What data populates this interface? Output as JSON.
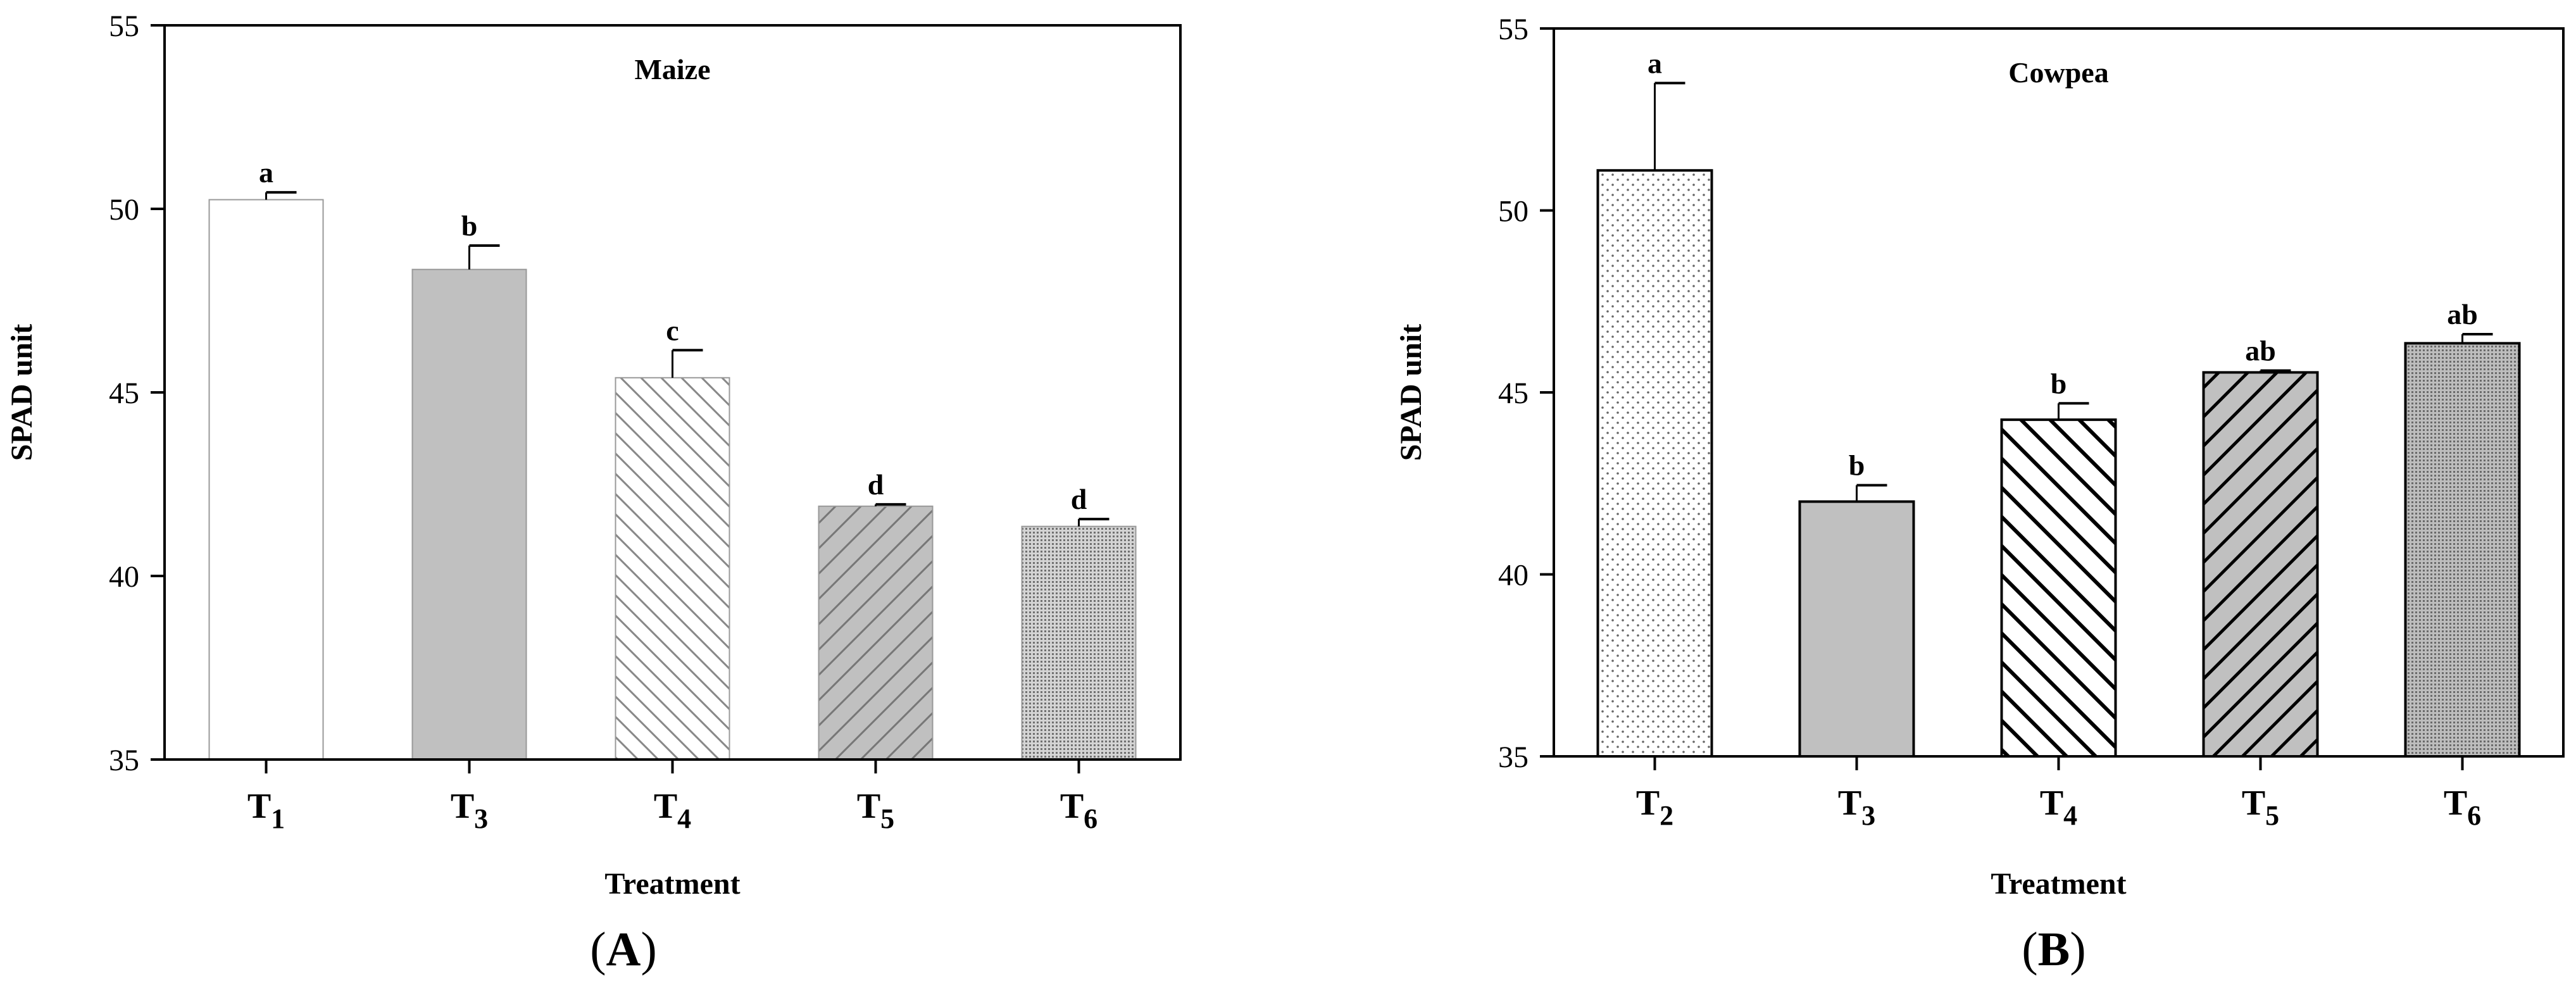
{
  "chart_data": [
    {
      "type": "bar",
      "title": "Maize",
      "panel_label": "(A)",
      "xlabel": "Treatment",
      "ylabel": "SPAD unit",
      "ylim": [
        35,
        55
      ],
      "yticks": [
        35,
        40,
        45,
        50,
        55
      ],
      "categories": [
        {
          "main": "T",
          "sub": "1"
        },
        {
          "main": "T",
          "sub": "3"
        },
        {
          "main": "T",
          "sub": "4"
        },
        {
          "main": "T",
          "sub": "5"
        },
        {
          "main": "T",
          "sub": "6"
        }
      ],
      "values": [
        50.25,
        48.35,
        45.4,
        41.9,
        41.35
      ],
      "errors": [
        0.2,
        0.65,
        0.75,
        0.05,
        0.2
      ],
      "letters": [
        "a",
        "b",
        "c",
        "d",
        "d"
      ],
      "fills": [
        "white",
        "solid-gray",
        "hatch-back-light",
        "hatch-fwd-gray",
        "dots-dense"
      ],
      "bar_border": "#999999",
      "gray": "#c0c0c0"
    },
    {
      "type": "bar",
      "title": "Cowpea",
      "panel_label": "(B)",
      "xlabel": "Treatment",
      "ylabel": "SPAD unit",
      "ylim": [
        35,
        55
      ],
      "yticks": [
        35,
        40,
        45,
        50,
        55
      ],
      "categories": [
        {
          "main": "T",
          "sub": "2"
        },
        {
          "main": "T",
          "sub": "3"
        },
        {
          "main": "T",
          "sub": "4"
        },
        {
          "main": "T",
          "sub": "5"
        },
        {
          "main": "T",
          "sub": "6"
        }
      ],
      "values": [
        51.1,
        42.0,
        44.25,
        45.55,
        46.35
      ],
      "errors": [
        2.4,
        0.45,
        0.45,
        0.05,
        0.25
      ],
      "letters": [
        "a",
        "b",
        "b",
        "ab",
        "ab"
      ],
      "fills": [
        "dots-sparse",
        "solid-gray",
        "hatch-back-bold",
        "hatch-fwd-gray-bold",
        "dots-dense-gray"
      ],
      "bar_border": "#000000",
      "gray": "#c0c0c0"
    }
  ]
}
